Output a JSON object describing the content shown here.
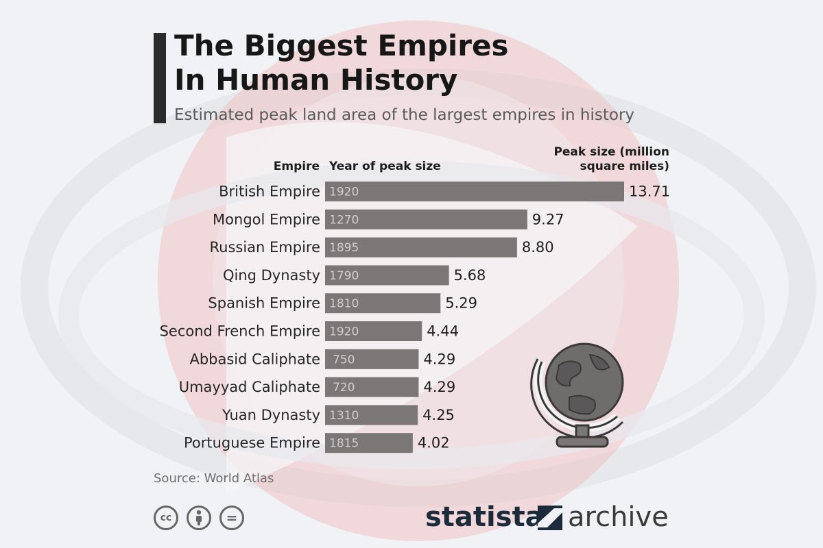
{
  "header": {
    "title_line1": "The Biggest Empires",
    "title_line2": "In Human History",
    "subtitle": "Estimated peak land area of the largest empires in history"
  },
  "columns": {
    "empire": "Empire",
    "year": "Year of peak size",
    "peak": "Peak size (million square miles)"
  },
  "chart_data": {
    "type": "bar",
    "orientation": "horizontal",
    "title": "The Biggest Empires In Human History",
    "subtitle": "Estimated peak land area of the largest empires in history",
    "xlabel": "Peak size (million square miles)",
    "categories": [
      "British Empire",
      "Mongol Empire",
      "Russian Empire",
      "Qing Dynasty",
      "Spanish Empire",
      "Second French Empire",
      "Abbasid Caliphate",
      "Umayyad Caliphate",
      "Yuan Dynasty",
      "Portuguese Empire"
    ],
    "years": [
      "1920",
      "1270",
      "1895",
      "1790",
      "1810",
      "1920",
      "750",
      "720",
      "1310",
      "1815"
    ],
    "values": [
      13.71,
      9.27,
      8.8,
      5.68,
      5.29,
      4.44,
      4.29,
      4.29,
      4.25,
      4.02
    ],
    "value_labels": [
      "13.71",
      "9.27",
      "8.80",
      "5.68",
      "5.29",
      "4.44",
      "4.29",
      "4.29",
      "4.25",
      "4.02"
    ],
    "xlim": [
      0,
      13.71
    ],
    "bar_color": "#7a7776",
    "grid": false
  },
  "footer": {
    "source": "Source: World Atlas",
    "license_icons": [
      "creative-commons-icon",
      "attribution-icon",
      "no-derivatives-icon"
    ],
    "cc_text": "cc",
    "nd_text": "=",
    "brand_word1": "statista",
    "brand_word2": "archive",
    "brand_color": "#1c2b3a"
  },
  "decoration": {
    "globe_icon": "globe-icon",
    "background_accent": "#e9a9ab"
  }
}
